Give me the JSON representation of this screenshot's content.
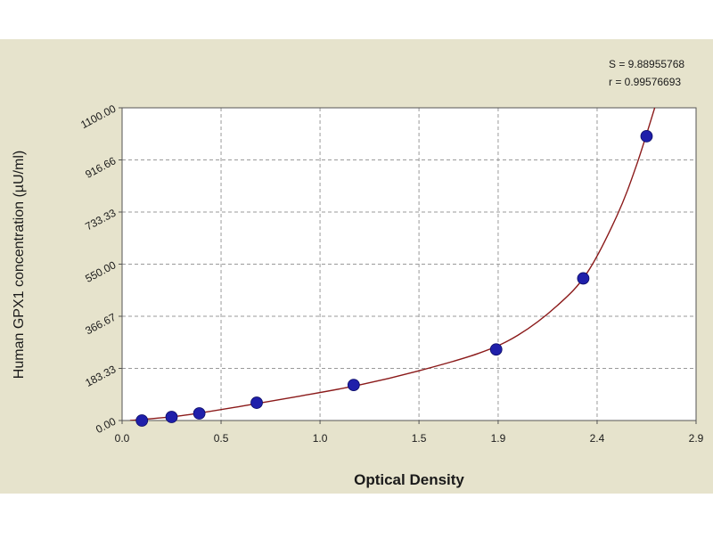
{
  "chart_data": {
    "type": "scatter",
    "xlabel": "Optical Density",
    "ylabel": "Human GPX1 concentration (µU/ml)",
    "x_ticks": [
      "0.0",
      "0.5",
      "1.0",
      "1.5",
      "1.9",
      "2.4",
      "2.9"
    ],
    "x_tick_values": [
      0.0,
      0.5,
      1.0,
      1.5,
      1.9,
      2.4,
      2.9
    ],
    "y_ticks": [
      "0.00",
      "183.33",
      "366.67",
      "550.00",
      "733.33",
      "916.66",
      "1100.00"
    ],
    "y_tick_values": [
      0.0,
      183.33,
      366.67,
      550.0,
      733.33,
      916.66,
      1100.0
    ],
    "xlim": [
      0.0,
      2.9
    ],
    "ylim": [
      0.0,
      1100.0
    ],
    "grid": true,
    "stats": [
      "S = 9.88955768",
      "r = 0.99576693"
    ],
    "series": [
      {
        "x": [
          0.1,
          0.25,
          0.39,
          0.68,
          1.17,
          1.89,
          2.33,
          2.65
        ],
        "y": [
          0.0,
          12.5,
          25.0,
          62.5,
          125.0,
          250.0,
          500.0,
          1000.0
        ]
      }
    ],
    "fit_curve": {
      "x": [
        0.04,
        0.3,
        0.6,
        0.9,
        1.2,
        1.5,
        1.8,
        2.0,
        2.2,
        2.35,
        2.5,
        2.6,
        2.7
      ],
      "y": [
        0,
        17,
        50,
        86,
        125,
        175,
        236,
        300,
        405,
        520,
        720,
        900,
        1120
      ]
    },
    "colors": {
      "frame_bg": "#e6e3cc",
      "plot_bg": "#ffffff",
      "curve": "#8b1a1a",
      "point": "#1f1faa",
      "grid": "#9a9a9a",
      "text": "#1a1a1a"
    }
  }
}
